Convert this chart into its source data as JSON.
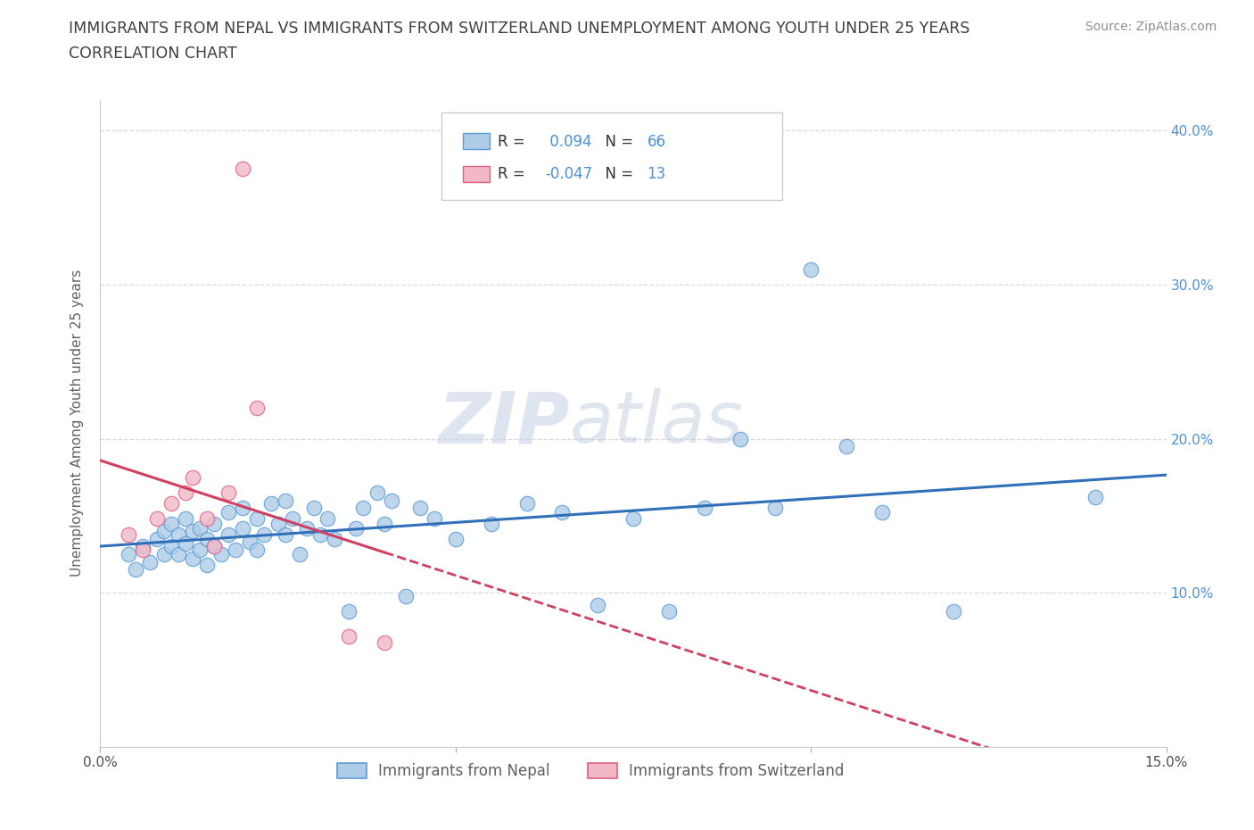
{
  "title_line1": "IMMIGRANTS FROM NEPAL VS IMMIGRANTS FROM SWITZERLAND UNEMPLOYMENT AMONG YOUTH UNDER 25 YEARS",
  "title_line2": "CORRELATION CHART",
  "source_text": "Source: ZipAtlas.com",
  "watermark_zip": "ZIP",
  "watermark_atlas": "atlas",
  "xlabel": "",
  "ylabel": "Unemployment Among Youth under 25 years",
  "xlim": [
    0.0,
    0.15
  ],
  "ylim": [
    0.0,
    0.42
  ],
  "xticks": [
    0.0,
    0.05,
    0.1,
    0.15
  ],
  "xticklabels": [
    "0.0%",
    "",
    "",
    "15.0%"
  ],
  "yticks": [
    0.0,
    0.1,
    0.2,
    0.3,
    0.4
  ],
  "yticklabels_right": [
    "",
    "10.0%",
    "20.0%",
    "30.0%",
    "40.0%"
  ],
  "legend_nepal_label": "Immigrants from Nepal",
  "legend_switzerland_label": "Immigrants from Switzerland",
  "r_nepal": "0.094",
  "n_nepal": "66",
  "r_switzerland": "-0.047",
  "n_switzerland": "13",
  "nepal_color": "#aecce8",
  "switzerland_color": "#f2b8c6",
  "nepal_edge_color": "#5b9bd5",
  "switzerland_edge_color": "#e06080",
  "nepal_line_color": "#3070b8",
  "switzerland_line_color": "#d04060",
  "grid_color": "#d8d8d8",
  "title_color": "#404040",
  "nepal_scatter": [
    [
      0.004,
      0.125
    ],
    [
      0.005,
      0.115
    ],
    [
      0.006,
      0.13
    ],
    [
      0.007,
      0.12
    ],
    [
      0.008,
      0.135
    ],
    [
      0.009,
      0.125
    ],
    [
      0.009,
      0.14
    ],
    [
      0.01,
      0.13
    ],
    [
      0.01,
      0.145
    ],
    [
      0.011,
      0.125
    ],
    [
      0.011,
      0.138
    ],
    [
      0.012,
      0.132
    ],
    [
      0.012,
      0.148
    ],
    [
      0.013,
      0.122
    ],
    [
      0.013,
      0.14
    ],
    [
      0.014,
      0.128
    ],
    [
      0.014,
      0.142
    ],
    [
      0.015,
      0.118
    ],
    [
      0.015,
      0.135
    ],
    [
      0.016,
      0.13
    ],
    [
      0.016,
      0.145
    ],
    [
      0.017,
      0.125
    ],
    [
      0.018,
      0.138
    ],
    [
      0.018,
      0.152
    ],
    [
      0.019,
      0.128
    ],
    [
      0.02,
      0.142
    ],
    [
      0.02,
      0.155
    ],
    [
      0.021,
      0.133
    ],
    [
      0.022,
      0.128
    ],
    [
      0.022,
      0.148
    ],
    [
      0.023,
      0.138
    ],
    [
      0.024,
      0.158
    ],
    [
      0.025,
      0.145
    ],
    [
      0.026,
      0.138
    ],
    [
      0.026,
      0.16
    ],
    [
      0.027,
      0.148
    ],
    [
      0.028,
      0.125
    ],
    [
      0.029,
      0.142
    ],
    [
      0.03,
      0.155
    ],
    [
      0.031,
      0.138
    ],
    [
      0.032,
      0.148
    ],
    [
      0.033,
      0.135
    ],
    [
      0.035,
      0.088
    ],
    [
      0.036,
      0.142
    ],
    [
      0.037,
      0.155
    ],
    [
      0.039,
      0.165
    ],
    [
      0.04,
      0.145
    ],
    [
      0.041,
      0.16
    ],
    [
      0.043,
      0.098
    ],
    [
      0.045,
      0.155
    ],
    [
      0.047,
      0.148
    ],
    [
      0.05,
      0.135
    ],
    [
      0.055,
      0.145
    ],
    [
      0.06,
      0.158
    ],
    [
      0.065,
      0.152
    ],
    [
      0.07,
      0.092
    ],
    [
      0.075,
      0.148
    ],
    [
      0.08,
      0.088
    ],
    [
      0.085,
      0.155
    ],
    [
      0.09,
      0.2
    ],
    [
      0.095,
      0.155
    ],
    [
      0.1,
      0.31
    ],
    [
      0.105,
      0.195
    ],
    [
      0.11,
      0.152
    ],
    [
      0.12,
      0.088
    ],
    [
      0.14,
      0.162
    ]
  ],
  "switzerland_scatter": [
    [
      0.004,
      0.138
    ],
    [
      0.006,
      0.128
    ],
    [
      0.008,
      0.148
    ],
    [
      0.01,
      0.158
    ],
    [
      0.012,
      0.165
    ],
    [
      0.013,
      0.175
    ],
    [
      0.015,
      0.148
    ],
    [
      0.016,
      0.13
    ],
    [
      0.018,
      0.165
    ],
    [
      0.02,
      0.375
    ],
    [
      0.022,
      0.22
    ],
    [
      0.035,
      0.072
    ],
    [
      0.04,
      0.068
    ]
  ]
}
